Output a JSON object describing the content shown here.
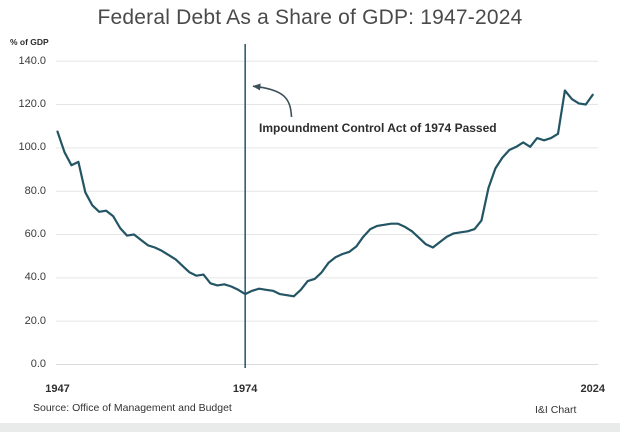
{
  "title": "Federal Debt As a Share of GDP: 1947-2024",
  "y_axis_unit_label": "% of GDP",
  "annotation": {
    "text": "Impoundment Control Act of 1974 Passed",
    "marker_year": 1974
  },
  "footer": {
    "source": "Source: Office of Management and Budget",
    "credit": "I&I Chart"
  },
  "chart_data": {
    "type": "line",
    "title": "Federal Debt As a Share of GDP: 1947-2024",
    "xlabel": "",
    "ylabel": "% of GDP",
    "ylim": [
      0,
      140
    ],
    "grid": true,
    "legend": "none",
    "line_color": "#235564",
    "grid_color": "#e6e6e6",
    "vline_year": 1974,
    "x_tick_years": [
      1947,
      1974,
      2024
    ],
    "x_tick_labels": [
      "1947",
      "1974",
      "2024"
    ],
    "y_ticks": [
      0,
      20,
      40,
      60,
      80,
      100,
      120,
      140
    ],
    "y_tick_labels": [
      "0.0",
      "20.0",
      "40.0",
      "60.0",
      "80.0",
      "100.0",
      "120.0",
      "140.0"
    ],
    "x": [
      1947,
      1948,
      1949,
      1950,
      1951,
      1952,
      1953,
      1954,
      1955,
      1956,
      1957,
      1958,
      1959,
      1960,
      1961,
      1962,
      1963,
      1964,
      1965,
      1966,
      1967,
      1968,
      1969,
      1970,
      1971,
      1972,
      1973,
      1974,
      1975,
      1976,
      1977,
      1978,
      1979,
      1980,
      1981,
      1982,
      1983,
      1984,
      1985,
      1986,
      1987,
      1988,
      1989,
      1990,
      1991,
      1992,
      1993,
      1994,
      1995,
      1996,
      1997,
      1998,
      1999,
      2000,
      2001,
      2002,
      2003,
      2004,
      2005,
      2006,
      2007,
      2008,
      2009,
      2010,
      2011,
      2012,
      2013,
      2014,
      2015,
      2016,
      2017,
      2018,
      2019,
      2020,
      2021,
      2022,
      2023,
      2024
    ],
    "values": [
      107.5,
      98,
      92,
      93.5,
      79.5,
      73.5,
      70.5,
      71,
      68.5,
      63,
      59.5,
      60,
      57.5,
      55,
      54,
      52.5,
      50.5,
      48.5,
      45.5,
      42.5,
      41,
      41.5,
      37.5,
      36.5,
      37,
      36,
      34.5,
      32.5,
      34,
      35,
      34.5,
      34,
      32.5,
      32,
      31.5,
      34.5,
      38.5,
      39.5,
      42.5,
      47,
      49.5,
      51,
      52,
      54.5,
      59,
      62.5,
      64,
      64.5,
      65,
      65,
      63.5,
      61.5,
      58.5,
      55.5,
      54,
      56.5,
      59,
      60.5,
      61,
      61.5,
      62.5,
      66.5,
      81.5,
      90.5,
      95.5,
      99,
      100.5,
      102.5,
      100.5,
      104.5,
      103.5,
      104.5,
      106.5,
      126.5,
      122.5,
      120.5,
      120,
      124.5
    ]
  }
}
